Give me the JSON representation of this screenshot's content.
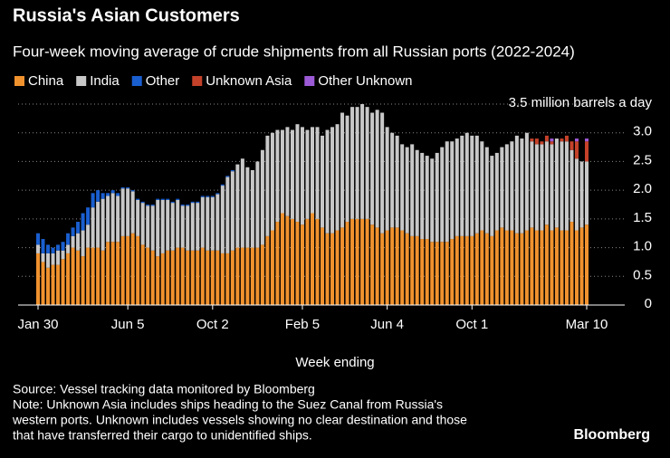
{
  "chart_data": {
    "type": "stacked-bar",
    "title": "Russia's Asian Customers",
    "subtitle": "Four-week moving average of crude shipments from all Russian ports (2022-2024)",
    "x_label": "Week ending",
    "categories": [
      "Jan 30",
      null,
      null,
      null,
      null,
      null,
      null,
      null,
      null,
      null,
      null,
      null,
      null,
      null,
      null,
      null,
      null,
      null,
      "Jun 5",
      null,
      null,
      null,
      null,
      null,
      null,
      null,
      null,
      null,
      null,
      null,
      null,
      null,
      null,
      null,
      null,
      "Oct 2",
      null,
      null,
      null,
      null,
      null,
      null,
      null,
      null,
      null,
      null,
      null,
      null,
      null,
      null,
      null,
      null,
      null,
      "Feb 5",
      null,
      null,
      null,
      null,
      null,
      null,
      null,
      null,
      null,
      null,
      null,
      null,
      null,
      null,
      null,
      null,
      "Jun 4",
      null,
      null,
      null,
      null,
      null,
      null,
      null,
      null,
      null,
      null,
      null,
      null,
      null,
      null,
      null,
      null,
      "Oct 1",
      null,
      null,
      null,
      null,
      null,
      null,
      null,
      null,
      null,
      null,
      null,
      null,
      null,
      null,
      null,
      null,
      null,
      null,
      null,
      null,
      null,
      null,
      "Mar 10"
    ],
    "series": [
      {
        "name": "China",
        "color": "#f0922e",
        "values": [
          0.9,
          0.75,
          0.65,
          0.7,
          0.7,
          0.8,
          0.9,
          1.0,
          0.95,
          0.85,
          1.0,
          1.0,
          1.0,
          0.95,
          1.1,
          1.1,
          1.1,
          1.2,
          1.2,
          1.25,
          1.2,
          1.05,
          1.0,
          0.95,
          0.85,
          0.9,
          0.95,
          0.95,
          1.0,
          1.0,
          0.95,
          0.95,
          0.95,
          1.0,
          0.95,
          0.95,
          0.95,
          0.9,
          0.9,
          0.95,
          1.0,
          1.0,
          1.0,
          1.0,
          1.0,
          1.05,
          1.2,
          1.3,
          1.45,
          1.6,
          1.55,
          1.5,
          1.45,
          1.4,
          1.5,
          1.6,
          1.5,
          1.35,
          1.25,
          1.25,
          1.3,
          1.35,
          1.45,
          1.5,
          1.5,
          1.5,
          1.5,
          1.4,
          1.35,
          1.25,
          1.3,
          1.35,
          1.35,
          1.3,
          1.25,
          1.2,
          1.2,
          1.15,
          1.15,
          1.1,
          1.1,
          1.1,
          1.1,
          1.15,
          1.2,
          1.2,
          1.2,
          1.2,
          1.25,
          1.3,
          1.25,
          1.2,
          1.3,
          1.35,
          1.3,
          1.3,
          1.25,
          1.25,
          1.3,
          1.35,
          1.3,
          1.3,
          1.4,
          1.3,
          1.35,
          1.3,
          1.3,
          1.45,
          1.3,
          1.35,
          1.4
        ]
      },
      {
        "name": "India",
        "color": "#c8c8c8",
        "values": [
          0.15,
          0.15,
          0.25,
          0.2,
          0.25,
          0.15,
          0.15,
          0.2,
          0.3,
          0.45,
          0.4,
          0.7,
          0.8,
          0.9,
          0.8,
          0.85,
          0.8,
          0.83,
          0.83,
          0.73,
          0.63,
          0.73,
          0.73,
          0.78,
          0.98,
          0.93,
          0.88,
          0.83,
          0.83,
          0.73,
          0.78,
          0.83,
          0.83,
          0.88,
          0.93,
          0.93,
          0.98,
          1.18,
          1.33,
          1.38,
          1.45,
          1.55,
          1.4,
          1.35,
          1.5,
          1.65,
          1.75,
          1.7,
          1.6,
          1.45,
          1.55,
          1.55,
          1.7,
          1.7,
          1.55,
          1.5,
          1.6,
          1.6,
          1.8,
          1.85,
          1.85,
          2.0,
          1.85,
          1.95,
          1.95,
          2.0,
          1.95,
          1.95,
          2.05,
          2.1,
          1.8,
          1.65,
          1.6,
          1.5,
          1.5,
          1.6,
          1.5,
          1.5,
          1.45,
          1.45,
          1.55,
          1.65,
          1.75,
          1.7,
          1.7,
          1.75,
          1.8,
          1.75,
          1.7,
          1.55,
          1.5,
          1.4,
          1.35,
          1.4,
          1.5,
          1.55,
          1.7,
          1.65,
          1.7,
          1.5,
          1.5,
          1.5,
          1.45,
          1.5,
          1.55,
          1.55,
          1.55,
          1.25,
          1.25,
          1.15,
          1.1
        ]
      },
      {
        "name": "Other",
        "color": "#1a5fd0",
        "values": [
          0.2,
          0.25,
          0.15,
          0.1,
          0.1,
          0.15,
          0.2,
          0.15,
          0.2,
          0.3,
          0.3,
          0.25,
          0.2,
          0.1,
          0.05,
          0.05,
          0.05,
          0.02,
          0.02,
          0.02,
          0.02,
          0.02,
          0.02,
          0.02,
          0.02,
          0.02,
          0.02,
          0.02,
          0.02,
          0.02,
          0.02,
          0.02,
          0.02,
          0.02,
          0.02,
          0.02,
          0.02,
          0.02,
          0.02,
          0.02,
          0,
          0,
          0,
          0,
          0,
          0,
          0,
          0,
          0,
          0,
          0,
          0,
          0,
          0,
          0,
          0,
          0,
          0,
          0,
          0,
          0,
          0,
          0,
          0,
          0,
          0,
          0,
          0,
          0,
          0,
          0,
          0,
          0,
          0,
          0,
          0,
          0,
          0,
          0,
          0,
          0,
          0,
          0,
          0,
          0,
          0,
          0,
          0,
          0,
          0,
          0,
          0,
          0,
          0,
          0,
          0,
          0,
          0,
          0,
          0,
          0,
          0,
          0,
          0,
          0,
          0,
          0,
          0,
          0,
          0,
          0
        ]
      },
      {
        "name": "Unknown Asia",
        "color": "#c4422a",
        "values": [
          0,
          0,
          0,
          0,
          0,
          0,
          0,
          0,
          0,
          0,
          0,
          0,
          0,
          0,
          0,
          0,
          0,
          0,
          0,
          0,
          0,
          0,
          0,
          0,
          0,
          0,
          0,
          0,
          0,
          0,
          0,
          0,
          0,
          0,
          0,
          0,
          0,
          0,
          0,
          0,
          0,
          0,
          0,
          0,
          0,
          0,
          0,
          0,
          0,
          0,
          0,
          0,
          0,
          0,
          0,
          0,
          0,
          0,
          0,
          0,
          0,
          0,
          0,
          0,
          0,
          0,
          0,
          0,
          0,
          0,
          0,
          0,
          0,
          0,
          0,
          0,
          0,
          0,
          0,
          0,
          0,
          0,
          0,
          0,
          0,
          0,
          0,
          0,
          0,
          0,
          0,
          0,
          0,
          0,
          0,
          0,
          0,
          0,
          0,
          0.05,
          0.1,
          0.05,
          0.1,
          0.05,
          0,
          0.05,
          0.1,
          0.15,
          0.3,
          0,
          0.35
        ]
      },
      {
        "name": "Other Unknown",
        "color": "#9d5ad6",
        "values": [
          0,
          0,
          0,
          0,
          0,
          0,
          0,
          0,
          0,
          0,
          0,
          0,
          0,
          0,
          0,
          0,
          0,
          0,
          0,
          0,
          0,
          0,
          0,
          0,
          0,
          0,
          0,
          0,
          0,
          0,
          0,
          0,
          0,
          0,
          0,
          0,
          0,
          0,
          0,
          0,
          0,
          0,
          0,
          0,
          0,
          0,
          0,
          0,
          0,
          0,
          0,
          0,
          0,
          0,
          0,
          0,
          0,
          0,
          0,
          0,
          0,
          0,
          0,
          0,
          0,
          0,
          0,
          0,
          0,
          0,
          0,
          0,
          0,
          0,
          0,
          0,
          0,
          0,
          0,
          0,
          0,
          0,
          0,
          0,
          0,
          0,
          0,
          0,
          0,
          0,
          0,
          0,
          0,
          0,
          0,
          0,
          0,
          0,
          0,
          0,
          0,
          0,
          0,
          0.05,
          0,
          0,
          0,
          0,
          0.05,
          0,
          0.05
        ]
      }
    ],
    "ylim": [
      0,
      3.5
    ],
    "yticks": [
      0,
      0.5,
      {
        "value": 1,
        "label": "1.0"
      },
      1.5,
      {
        "value": 2,
        "label": "2.0"
      },
      2.5,
      {
        "value": 3,
        "label": "3.0"
      },
      {
        "value": 3.5,
        "label": "3.5 million barrels a day"
      }
    ],
    "grid": true,
    "notes": [
      "Source: Vessel tracking data monitored by Bloomberg",
      "Note: Unknown Asia includes ships heading to the Suez Canal from Russia's",
      "western ports. Unknown includes vessels showing no clear destination and those",
      "that have transferred their cargo to unidentified ships."
    ],
    "brand": "Bloomberg"
  }
}
